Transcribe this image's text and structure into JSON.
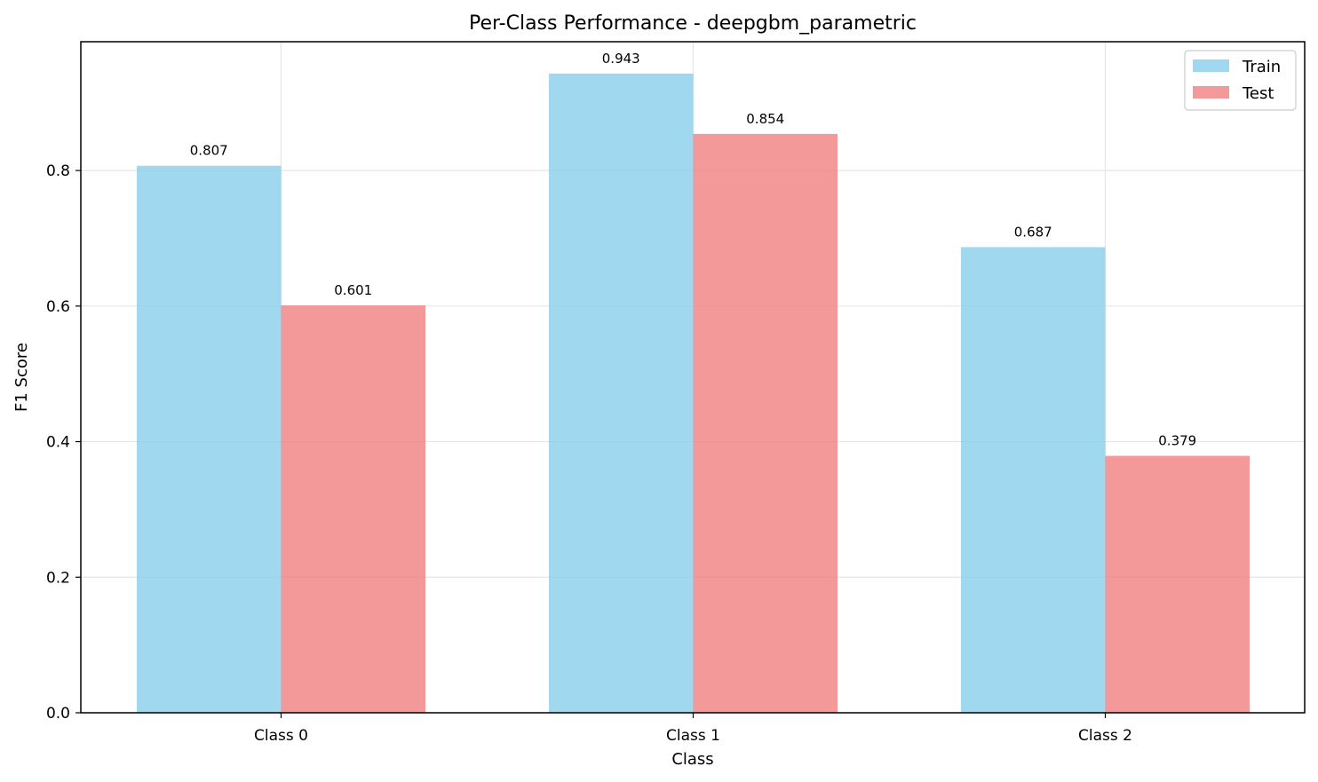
{
  "chart_data": {
    "type": "bar",
    "title": "Per-Class Performance - deepgbm_parametric",
    "xlabel": "Class",
    "ylabel": "F1 Score",
    "categories": [
      "Class 0",
      "Class 1",
      "Class 2"
    ],
    "series": [
      {
        "name": "Train",
        "values": [
          0.807,
          0.943,
          0.687
        ],
        "labels": [
          "0.807",
          "0.943",
          "0.687"
        ],
        "color": "#87CEEB"
      },
      {
        "name": "Test",
        "values": [
          0.601,
          0.854,
          0.379
        ],
        "labels": [
          "0.601",
          "0.854",
          "0.379"
        ],
        "color": "#F08080"
      }
    ],
    "ylim": [
      0,
      0.99
    ],
    "yticks": [
      0.0,
      0.2,
      0.4,
      0.6,
      0.8
    ],
    "ytick_labels": [
      "0.0",
      "0.2",
      "0.4",
      "0.6",
      "0.8"
    ],
    "grid": true,
    "legend_position": "top-right",
    "bar_alpha": 0.8
  }
}
